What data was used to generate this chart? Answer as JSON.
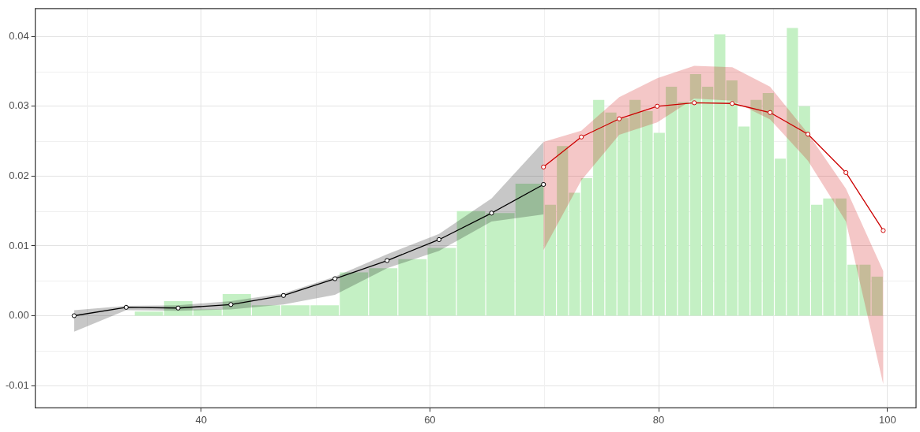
{
  "chart_data": {
    "type": "histogram",
    "bins": [
      34.16,
      36.72,
      39.28,
      41.84,
      44.4,
      46.96,
      49.52,
      52.08,
      54.64,
      57.2,
      59.76,
      62.32,
      64.88,
      67.44,
      70.0,
      71.06,
      72.12,
      73.17,
      74.23,
      75.29,
      76.35,
      77.41,
      78.47,
      79.52,
      80.58,
      81.64,
      82.7,
      83.76,
      84.81,
      85.87,
      86.93,
      87.99,
      89.05,
      90.11,
      91.16,
      92.22,
      93.28,
      94.34,
      95.4,
      96.46,
      97.51,
      98.57,
      99.63
    ],
    "values": [
      0.0006,
      0.0021,
      0.0009,
      0.0031,
      0.0015,
      0.0015,
      0.0015,
      0.0062,
      0.0068,
      0.0081,
      0.0097,
      0.015,
      0.0147,
      0.0189,
      0.0159,
      0.0243,
      0.0176,
      0.0197,
      0.0309,
      0.0291,
      0.0283,
      0.0309,
      0.0293,
      0.0262,
      0.0328,
      0.0306,
      0.0346,
      0.0328,
      0.0403,
      0.0337,
      0.0271,
      0.0309,
      0.0319,
      0.0225,
      0.0412,
      0.03,
      0.0159,
      0.0168,
      0.0168,
      0.0073,
      0.0073,
      0.0056
    ],
    "color": "#c4f0c4",
    "series": [
      {
        "type": "line",
        "color": "#000000",
        "x": [
          28.9,
          33.45,
          37.99,
          42.6,
          47.2,
          51.7,
          56.26,
          60.8,
          65.39,
          69.93
        ],
        "values": [
          0.0,
          0.0012,
          0.0011,
          0.0016,
          0.0029,
          0.0053,
          0.0079,
          0.0109,
          0.0147,
          0.0188
        ],
        "lower": [
          -0.0023,
          0.0008,
          0.0007,
          0.0009,
          0.0016,
          0.003,
          0.0068,
          0.0093,
          0.0135,
          0.0145
        ],
        "upper": [
          0.0008,
          0.0014,
          0.0015,
          0.0021,
          0.0032,
          0.0056,
          0.0088,
          0.0117,
          0.0168,
          0.0249
        ]
      },
      {
        "type": "line",
        "color": "#cc0000",
        "x": [
          69.93,
          73.24,
          76.55,
          79.87,
          83.11,
          86.43,
          89.74,
          93.05,
          96.37,
          99.63
        ],
        "values": [
          0.0213,
          0.0256,
          0.0282,
          0.03,
          0.0305,
          0.0304,
          0.0291,
          0.026,
          0.0205,
          0.0122
        ],
        "lower": [
          0.0094,
          0.0194,
          0.0259,
          0.0277,
          0.0311,
          0.0308,
          0.0281,
          0.0222,
          0.0135,
          -0.0098
        ],
        "upper": [
          0.0249,
          0.0265,
          0.0313,
          0.034,
          0.0358,
          0.0356,
          0.0328,
          0.0261,
          0.0182,
          0.0064
        ]
      }
    ],
    "xlim": [
      25.5,
      102.5
    ],
    "xticks": [
      40,
      60,
      80,
      100
    ],
    "ylim": [
      -0.0132,
      0.044
    ],
    "yticks": [
      {
        "value": -0.01,
        "label": "-0.01"
      },
      {
        "value": 0,
        "label": "0.00"
      },
      {
        "value": 0.01,
        "label": "0.01"
      },
      {
        "value": 0.02,
        "label": "0.02"
      },
      {
        "value": 0.03,
        "label": "0.03"
      },
      {
        "value": 0.04,
        "label": "0.04"
      }
    ],
    "grid": true,
    "legend": false,
    "marker": "circle",
    "line_style": "solid"
  }
}
